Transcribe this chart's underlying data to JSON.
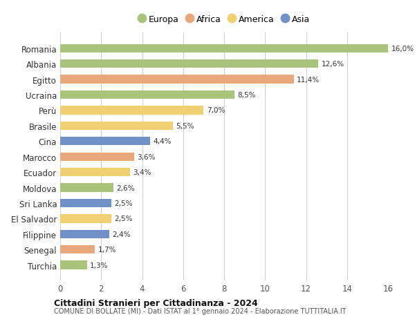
{
  "countries": [
    "Romania",
    "Albania",
    "Egitto",
    "Ucraina",
    "Perù",
    "Brasile",
    "Cina",
    "Marocco",
    "Ecuador",
    "Moldova",
    "Sri Lanka",
    "El Salvador",
    "Filippine",
    "Senegal",
    "Turchia"
  ],
  "values": [
    16.0,
    12.6,
    11.4,
    8.5,
    7.0,
    5.5,
    4.4,
    3.6,
    3.4,
    2.6,
    2.5,
    2.5,
    2.4,
    1.7,
    1.3
  ],
  "labels": [
    "16,0%",
    "12,6%",
    "11,4%",
    "8,5%",
    "7,0%",
    "5,5%",
    "4,4%",
    "3,6%",
    "3,4%",
    "2,6%",
    "2,5%",
    "2,5%",
    "2,4%",
    "1,7%",
    "1,3%"
  ],
  "regions": [
    "Europa",
    "Europa",
    "Africa",
    "Europa",
    "America",
    "America",
    "Asia",
    "Africa",
    "America",
    "Europa",
    "Asia",
    "America",
    "Asia",
    "Africa",
    "Europa"
  ],
  "region_colors": {
    "Europa": "#a8c47a",
    "Africa": "#e8a87c",
    "America": "#f0d070",
    "Asia": "#7090c8"
  },
  "legend_order": [
    "Europa",
    "Africa",
    "America",
    "Asia"
  ],
  "title": "Cittadini Stranieri per Cittadinanza - 2024",
  "subtitle": "COMUNE DI BOLLATE (MI) - Dati ISTAT al 1° gennaio 2024 - Elaborazione TUTTITALIA.IT",
  "xlim": [
    0,
    16
  ],
  "xticks": [
    0,
    2,
    4,
    6,
    8,
    10,
    12,
    14,
    16
  ],
  "bg_color": "#ffffff",
  "grid_color": "#cccccc",
  "bar_height": 0.55
}
